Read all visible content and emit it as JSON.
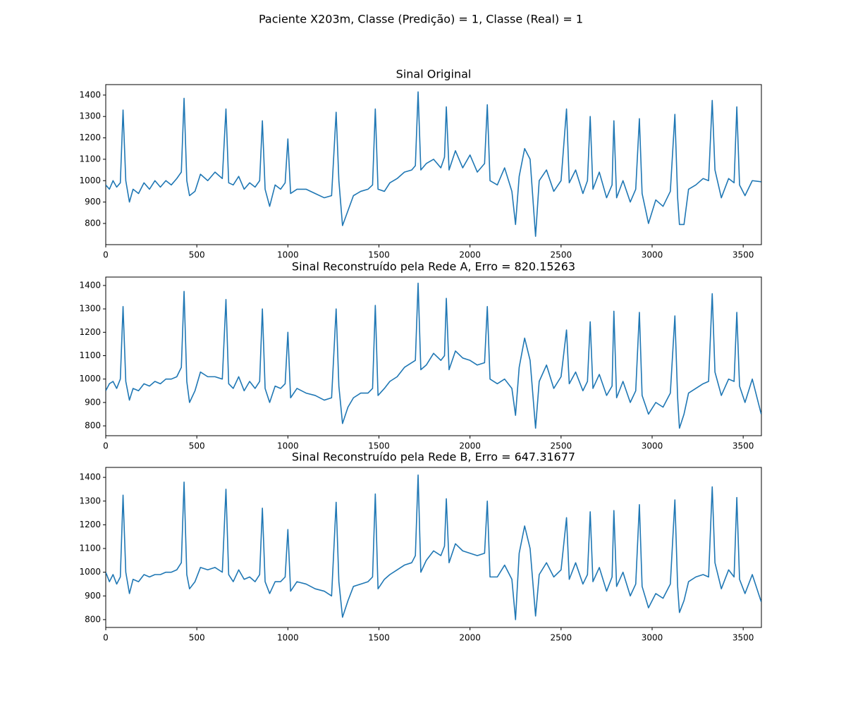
{
  "title": "Paciente X203m, Classe (Predição) = 1, Classe (Real) = 1",
  "chart_data": [
    {
      "type": "line",
      "title": "Sinal Original",
      "color": "#1f77b4",
      "grid": false,
      "xlim": [
        0,
        3600
      ],
      "ylim": [
        701,
        1449
      ],
      "xticks": [
        0,
        500,
        1000,
        1500,
        2000,
        2500,
        3000,
        3500
      ],
      "yticks": [
        800,
        900,
        1000,
        1100,
        1200,
        1300,
        1400
      ],
      "x": [
        0,
        20,
        40,
        60,
        80,
        95,
        110,
        130,
        150,
        180,
        210,
        240,
        270,
        300,
        330,
        360,
        390,
        415,
        430,
        445,
        460,
        490,
        520,
        560,
        600,
        640,
        660,
        675,
        700,
        730,
        760,
        790,
        820,
        845,
        860,
        875,
        900,
        930,
        960,
        985,
        1000,
        1015,
        1050,
        1100,
        1150,
        1200,
        1240,
        1265,
        1280,
        1300,
        1330,
        1360,
        1400,
        1440,
        1465,
        1480,
        1495,
        1530,
        1560,
        1600,
        1640,
        1680,
        1700,
        1715,
        1730,
        1760,
        1800,
        1840,
        1860,
        1870,
        1885,
        1920,
        1960,
        2000,
        2040,
        2080,
        2095,
        2110,
        2150,
        2190,
        2230,
        2250,
        2270,
        2300,
        2330,
        2360,
        2380,
        2420,
        2460,
        2500,
        2530,
        2545,
        2580,
        2620,
        2645,
        2660,
        2675,
        2710,
        2750,
        2780,
        2790,
        2805,
        2840,
        2880,
        2910,
        2930,
        2945,
        2980,
        3020,
        3060,
        3100,
        3125,
        3140,
        3150,
        3175,
        3200,
        3240,
        3280,
        3310,
        3330,
        3345,
        3380,
        3420,
        3450,
        3465,
        3480,
        3510,
        3550,
        3599
      ],
      "values": [
        980,
        960,
        1000,
        970,
        990,
        1330,
        1000,
        900,
        960,
        940,
        990,
        960,
        1000,
        970,
        1000,
        980,
        1010,
        1040,
        1385,
        1000,
        930,
        950,
        1030,
        1000,
        1040,
        1010,
        1335,
        990,
        980,
        1020,
        960,
        990,
        970,
        1000,
        1280,
        960,
        880,
        980,
        960,
        990,
        1195,
        940,
        960,
        960,
        940,
        920,
        930,
        1320,
        1000,
        790,
        860,
        930,
        950,
        960,
        980,
        1335,
        960,
        950,
        990,
        1010,
        1040,
        1050,
        1070,
        1415,
        1050,
        1080,
        1100,
        1060,
        1110,
        1345,
        1050,
        1140,
        1060,
        1120,
        1040,
        1080,
        1355,
        1000,
        980,
        1060,
        950,
        795,
        1020,
        1150,
        1100,
        740,
        1000,
        1050,
        950,
        1000,
        1335,
        990,
        1050,
        940,
        1000,
        1300,
        960,
        1040,
        920,
        980,
        1280,
        920,
        1000,
        900,
        960,
        1290,
        940,
        800,
        910,
        880,
        950,
        1310,
        920,
        795,
        795,
        960,
        980,
        1010,
        1000,
        1375,
        1050,
        920,
        1010,
        990,
        1345,
        980,
        930,
        1000,
        995
      ]
    },
    {
      "type": "line",
      "title": "Sinal Reconstruído pela Rede A, Erro = 820.15263",
      "color": "#1f77b4",
      "grid": false,
      "xlim": [
        0,
        3600
      ],
      "ylim": [
        758,
        1436
      ],
      "xticks": [
        0,
        500,
        1000,
        1500,
        2000,
        2500,
        3000,
        3500
      ],
      "yticks": [
        800,
        900,
        1000,
        1100,
        1200,
        1300,
        1400
      ],
      "x": [
        0,
        20,
        40,
        60,
        80,
        95,
        110,
        130,
        150,
        180,
        210,
        240,
        270,
        300,
        330,
        360,
        390,
        415,
        430,
        445,
        460,
        490,
        520,
        560,
        600,
        640,
        660,
        675,
        700,
        730,
        760,
        790,
        820,
        845,
        860,
        875,
        900,
        930,
        960,
        985,
        1000,
        1015,
        1050,
        1100,
        1150,
        1200,
        1240,
        1265,
        1280,
        1300,
        1330,
        1360,
        1400,
        1440,
        1465,
        1480,
        1495,
        1530,
        1560,
        1600,
        1640,
        1680,
        1700,
        1715,
        1730,
        1760,
        1800,
        1840,
        1860,
        1870,
        1885,
        1920,
        1960,
        2000,
        2040,
        2080,
        2095,
        2110,
        2150,
        2190,
        2230,
        2250,
        2270,
        2300,
        2330,
        2360,
        2380,
        2420,
        2460,
        2500,
        2530,
        2545,
        2580,
        2620,
        2645,
        2660,
        2675,
        2710,
        2750,
        2780,
        2790,
        2805,
        2840,
        2880,
        2910,
        2930,
        2945,
        2980,
        3020,
        3060,
        3100,
        3125,
        3140,
        3150,
        3175,
        3200,
        3240,
        3280,
        3310,
        3330,
        3345,
        3380,
        3420,
        3450,
        3465,
        3480,
        3510,
        3550,
        3599
      ],
      "values": [
        950,
        980,
        990,
        960,
        1000,
        1310,
        990,
        910,
        960,
        950,
        980,
        970,
        990,
        980,
        1000,
        1000,
        1010,
        1050,
        1375,
        990,
        900,
        950,
        1030,
        1010,
        1010,
        1000,
        1340,
        980,
        960,
        1010,
        950,
        990,
        960,
        990,
        1300,
        960,
        900,
        970,
        960,
        980,
        1200,
        920,
        960,
        940,
        930,
        910,
        920,
        1300,
        970,
        810,
        880,
        920,
        940,
        940,
        960,
        1315,
        930,
        960,
        990,
        1010,
        1050,
        1070,
        1080,
        1410,
        1040,
        1060,
        1110,
        1080,
        1100,
        1345,
        1040,
        1120,
        1090,
        1080,
        1060,
        1070,
        1310,
        1000,
        980,
        1000,
        960,
        845,
        1050,
        1175,
        1080,
        790,
        990,
        1060,
        960,
        1010,
        1210,
        980,
        1030,
        950,
        990,
        1245,
        960,
        1020,
        930,
        970,
        1290,
        920,
        990,
        900,
        950,
        1285,
        930,
        850,
        900,
        880,
        940,
        1270,
        920,
        790,
        850,
        940,
        960,
        980,
        990,
        1365,
        1030,
        930,
        1000,
        990,
        1285,
        970,
        900,
        1000,
        850
      ]
    },
    {
      "type": "line",
      "title": "Sinal Reconstruído pela Rede B, Erro = 647.31677",
      "color": "#1f77b4",
      "grid": false,
      "xlim": [
        0,
        3600
      ],
      "ylim": [
        767,
        1442
      ],
      "xticks": [
        0,
        500,
        1000,
        1500,
        2000,
        2500,
        3000,
        3500
      ],
      "yticks": [
        800,
        900,
        1000,
        1100,
        1200,
        1300,
        1400
      ],
      "x": [
        0,
        20,
        40,
        60,
        80,
        95,
        110,
        130,
        150,
        180,
        210,
        240,
        270,
        300,
        330,
        360,
        390,
        415,
        430,
        445,
        460,
        490,
        520,
        560,
        600,
        640,
        660,
        675,
        700,
        730,
        760,
        790,
        820,
        845,
        860,
        875,
        900,
        930,
        960,
        985,
        1000,
        1015,
        1050,
        1100,
        1150,
        1200,
        1240,
        1265,
        1280,
        1300,
        1330,
        1360,
        1400,
        1440,
        1465,
        1480,
        1495,
        1530,
        1560,
        1600,
        1640,
        1680,
        1700,
        1715,
        1730,
        1760,
        1800,
        1840,
        1860,
        1870,
        1885,
        1920,
        1960,
        2000,
        2040,
        2080,
        2095,
        2110,
        2150,
        2190,
        2230,
        2250,
        2270,
        2300,
        2330,
        2360,
        2380,
        2420,
        2460,
        2500,
        2530,
        2545,
        2580,
        2620,
        2645,
        2660,
        2675,
        2710,
        2750,
        2780,
        2790,
        2805,
        2840,
        2880,
        2910,
        2930,
        2945,
        2980,
        3020,
        3060,
        3100,
        3125,
        3140,
        3150,
        3175,
        3200,
        3240,
        3280,
        3310,
        3330,
        3345,
        3380,
        3420,
        3450,
        3465,
        3480,
        3510,
        3550,
        3599
      ],
      "values": [
        1000,
        960,
        990,
        950,
        980,
        1325,
        1000,
        910,
        970,
        960,
        990,
        980,
        990,
        990,
        1000,
        1000,
        1010,
        1040,
        1380,
        990,
        930,
        960,
        1020,
        1010,
        1020,
        1000,
        1350,
        990,
        960,
        1010,
        970,
        980,
        960,
        990,
        1270,
        960,
        910,
        960,
        960,
        980,
        1180,
        920,
        960,
        950,
        930,
        920,
        900,
        1295,
        960,
        810,
        880,
        940,
        950,
        960,
        980,
        1330,
        930,
        970,
        990,
        1010,
        1030,
        1040,
        1070,
        1410,
        1000,
        1050,
        1090,
        1070,
        1110,
        1310,
        1040,
        1120,
        1090,
        1080,
        1070,
        1080,
        1300,
        980,
        980,
        1030,
        970,
        800,
        1080,
        1195,
        1100,
        815,
        990,
        1040,
        980,
        1010,
        1230,
        970,
        1040,
        950,
        990,
        1255,
        960,
        1020,
        920,
        980,
        1260,
        940,
        1000,
        900,
        950,
        1285,
        940,
        850,
        910,
        890,
        950,
        1305,
        940,
        830,
        880,
        960,
        980,
        990,
        980,
        1360,
        1040,
        930,
        1010,
        980,
        1315,
        970,
        910,
        990,
        875
      ]
    }
  ]
}
